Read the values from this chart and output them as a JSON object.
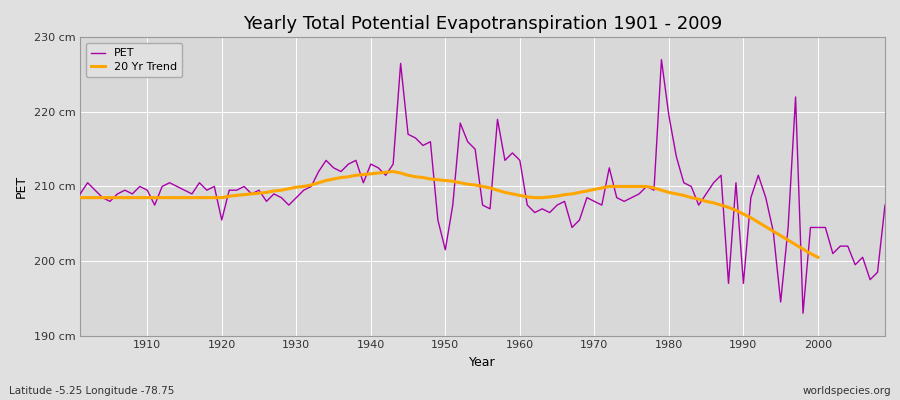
{
  "title": "Yearly Total Potential Evapotranspiration 1901 - 2009",
  "xlabel": "Year",
  "ylabel": "PET",
  "bottom_left_label": "Latitude -5.25 Longitude -78.75",
  "bottom_right_label": "worldspecies.org",
  "background_color": "#e0e0e0",
  "plot_bg_color": "#d8d8d8",
  "pet_color": "#aa00aa",
  "trend_color": "#ffa500",
  "pet_label": "PET",
  "trend_label": "20 Yr Trend",
  "years": [
    1901,
    1902,
    1903,
    1904,
    1905,
    1906,
    1907,
    1908,
    1909,
    1910,
    1911,
    1912,
    1913,
    1914,
    1915,
    1916,
    1917,
    1918,
    1919,
    1920,
    1921,
    1922,
    1923,
    1924,
    1925,
    1926,
    1927,
    1928,
    1929,
    1930,
    1931,
    1932,
    1933,
    1934,
    1935,
    1936,
    1937,
    1938,
    1939,
    1940,
    1941,
    1942,
    1943,
    1944,
    1945,
    1946,
    1947,
    1948,
    1949,
    1950,
    1951,
    1952,
    1953,
    1954,
    1955,
    1956,
    1957,
    1958,
    1959,
    1960,
    1961,
    1962,
    1963,
    1964,
    1965,
    1966,
    1967,
    1968,
    1969,
    1970,
    1971,
    1972,
    1973,
    1974,
    1975,
    1976,
    1977,
    1978,
    1979,
    1980,
    1981,
    1982,
    1983,
    1984,
    1985,
    1986,
    1987,
    1988,
    1989,
    1990,
    1991,
    1992,
    1993,
    1994,
    1995,
    1996,
    1997,
    1998,
    1999,
    2000,
    2001,
    2002,
    2003,
    2004,
    2005,
    2006,
    2007,
    2008,
    2009
  ],
  "pet_values": [
    209.0,
    210.5,
    209.5,
    208.5,
    208.0,
    209.0,
    209.5,
    209.0,
    210.0,
    209.5,
    207.5,
    210.0,
    210.5,
    210.0,
    209.5,
    209.0,
    210.5,
    209.5,
    210.0,
    205.5,
    209.5,
    209.5,
    210.0,
    209.0,
    209.5,
    208.0,
    209.0,
    208.5,
    207.5,
    208.5,
    209.5,
    210.0,
    212.0,
    213.5,
    212.5,
    212.0,
    213.0,
    213.5,
    210.5,
    213.0,
    212.5,
    211.5,
    213.0,
    226.5,
    217.0,
    216.5,
    215.5,
    216.0,
    205.5,
    201.5,
    207.5,
    218.5,
    216.0,
    215.0,
    207.5,
    207.0,
    219.0,
    213.5,
    214.5,
    213.5,
    207.5,
    206.5,
    207.0,
    206.5,
    207.5,
    208.0,
    204.5,
    205.5,
    208.5,
    208.0,
    207.5,
    212.5,
    208.5,
    208.0,
    208.5,
    209.0,
    210.0,
    209.5,
    227.0,
    219.5,
    214.0,
    210.5,
    210.0,
    207.5,
    209.0,
    210.5,
    211.5,
    197.0,
    210.5,
    197.0,
    208.5,
    211.5,
    208.5,
    204.0,
    194.5,
    204.5,
    222.0,
    193.0,
    204.5,
    204.5,
    204.5,
    201.0,
    202.0,
    202.0,
    199.5,
    200.5,
    197.5,
    198.5,
    207.5
  ],
  "trend_values": [
    208.5,
    208.5,
    208.5,
    208.5,
    208.5,
    208.5,
    208.5,
    208.5,
    208.5,
    208.5,
    208.5,
    208.5,
    208.5,
    208.5,
    208.5,
    208.5,
    208.5,
    208.5,
    208.5,
    208.5,
    208.7,
    208.8,
    208.9,
    209.0,
    209.1,
    209.2,
    209.4,
    209.5,
    209.7,
    209.9,
    210.0,
    210.2,
    210.5,
    210.8,
    211.0,
    211.2,
    211.3,
    211.5,
    211.6,
    211.7,
    211.8,
    211.9,
    212.0,
    211.8,
    211.5,
    211.3,
    211.2,
    211.0,
    210.9,
    210.8,
    210.7,
    210.5,
    210.3,
    210.2,
    210.0,
    209.8,
    209.5,
    209.2,
    209.0,
    208.8,
    208.6,
    208.5,
    208.5,
    208.6,
    208.7,
    208.9,
    209.0,
    209.2,
    209.4,
    209.6,
    209.8,
    210.0,
    210.0,
    210.0,
    210.0,
    210.0,
    210.0,
    209.8,
    209.5,
    209.2,
    209.0,
    208.8,
    208.5,
    208.3,
    208.0,
    207.8,
    207.5,
    207.2,
    206.8,
    206.3,
    205.8,
    205.2,
    204.6,
    204.0,
    203.4,
    202.8,
    202.2,
    201.6,
    201.0,
    200.5,
    null,
    null,
    null,
    null,
    null,
    null,
    null,
    null,
    null
  ],
  "ylim": [
    190,
    230
  ],
  "yticks": [
    190,
    200,
    210,
    220,
    230
  ],
  "ytick_labels": [
    "190 cm",
    "200 cm",
    "210 cm",
    "220 cm",
    "230 cm"
  ],
  "xlim": [
    1901,
    2009
  ],
  "xticks": [
    1910,
    1920,
    1930,
    1940,
    1950,
    1960,
    1970,
    1980,
    1990,
    2000
  ],
  "title_fontsize": 13,
  "label_fontsize": 9,
  "tick_fontsize": 8,
  "legend_fontsize": 8,
  "linewidth_pet": 1.0,
  "linewidth_trend": 2.2
}
